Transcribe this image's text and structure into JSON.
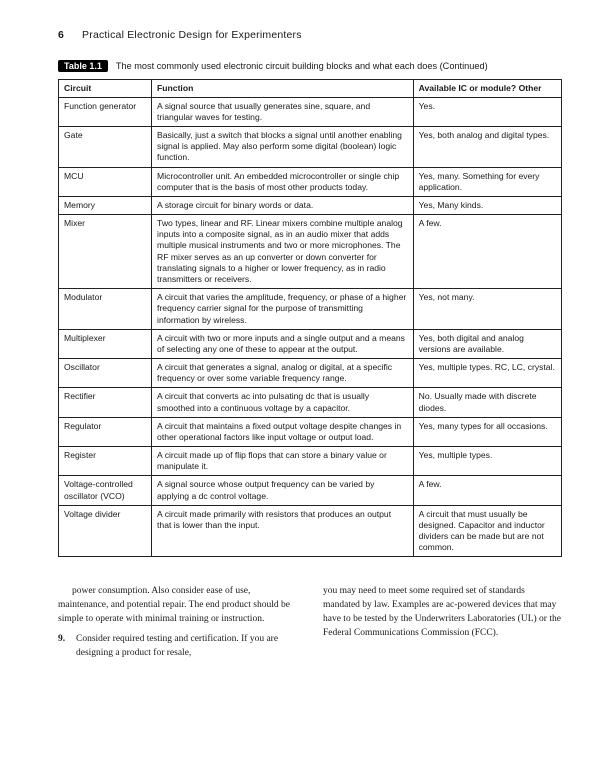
{
  "header": {
    "page_number": "6",
    "running_title": "Practical Electronic Design for Experimenters"
  },
  "table": {
    "label": "Table 1.1",
    "caption": "The most commonly used electronic circuit building blocks and what each does (Continued)",
    "columns": [
      "Circuit",
      "Function",
      "Available IC or module? Other"
    ],
    "rows": [
      [
        "Function generator",
        "A signal source that usually generates sine, square, and triangular waves for testing.",
        "Yes."
      ],
      [
        "Gate",
        "Basically, just a switch that blocks a signal until another enabling signal is applied. May also perform some digital (boolean) logic function.",
        "Yes, both analog and digital types."
      ],
      [
        "MCU",
        "Microcontroller unit. An embedded microcontroller or single chip computer that is the basis of most other products today.",
        "Yes, many. Something for every application."
      ],
      [
        "Memory",
        "A storage circuit for binary words or data.",
        "Yes, Many kinds."
      ],
      [
        "Mixer",
        "Two types, linear and RF. Linear mixers combine multiple analog inputs into a composite signal, as in an audio mixer that adds multiple musical instruments and two or more microphones. The RF mixer serves as an up converter or down converter for translating signals to a higher or lower frequency, as in radio transmitters or receivers.",
        "A few."
      ],
      [
        "Modulator",
        "A circuit that varies the amplitude, frequency, or phase of a higher frequency carrier signal for the purpose of transmitting information by wireless.",
        "Yes, not many."
      ],
      [
        "Multiplexer",
        "A circuit with two or more inputs and a single output and a means of selecting any one of these to appear at the output.",
        "Yes, both digital and analog versions are available."
      ],
      [
        "Oscillator",
        "A circuit that generates a signal, analog or digital, at a specific frequency or over some variable frequency range.",
        "Yes, multiple types. RC, LC, crystal."
      ],
      [
        "Rectifier",
        "A circuit that converts ac into pulsating dc that is usually smoothed into a continuous voltage by a capacitor.",
        "No. Usually made with discrete diodes."
      ],
      [
        "Regulator",
        "A circuit that maintains a fixed output voltage despite changes in other operational factors like input voltage or output load.",
        "Yes, many types for all occasions."
      ],
      [
        "Register",
        "A circuit made up of flip flops that can store a binary value or manipulate it.",
        "Yes, multiple types."
      ],
      [
        "Voltage-controlled oscillator (VCO)",
        "A signal source whose output frequency can be varied by applying a dc control voltage.",
        "A few."
      ],
      [
        "Voltage divider",
        "A circuit made primarily with resistors that produces an output that is lower than the input.",
        "A circuit that must usually be designed. Capacitor and inductor dividers can be made but are not common."
      ]
    ]
  },
  "body": {
    "left": {
      "p1": "power consumption. Also consider ease of use, maintenance, and potential repair. The end product should be simple to operate with minimal training or instruction.",
      "item_num": "9.",
      "item_text": "Consider required testing and certification. If you are designing a product for resale,"
    },
    "right": {
      "p1": "you may need to meet some required set of standards mandated by law. Examples are ac-powered devices that may have to be tested by the Underwriters Laboratories (UL) or the Federal Communications Commission (FCC)."
    }
  }
}
